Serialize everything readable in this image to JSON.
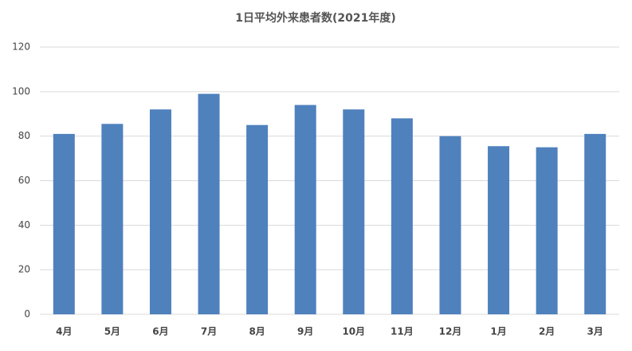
{
  "chart_data": {
    "type": "bar",
    "title": "1日平均外来患者数(2021年度)",
    "categories": [
      "4月",
      "5月",
      "6月",
      "7月",
      "8月",
      "9月",
      "10月",
      "11月",
      "12月",
      "1月",
      "2月",
      "3月"
    ],
    "values": [
      81,
      85.5,
      92,
      99,
      85,
      94,
      92,
      88,
      80,
      75.5,
      75,
      81
    ],
    "color": "#4f81bd",
    "ylim": [
      0,
      120
    ],
    "yticks": [
      0,
      20,
      40,
      60,
      80,
      100,
      120
    ],
    "grid": true
  }
}
